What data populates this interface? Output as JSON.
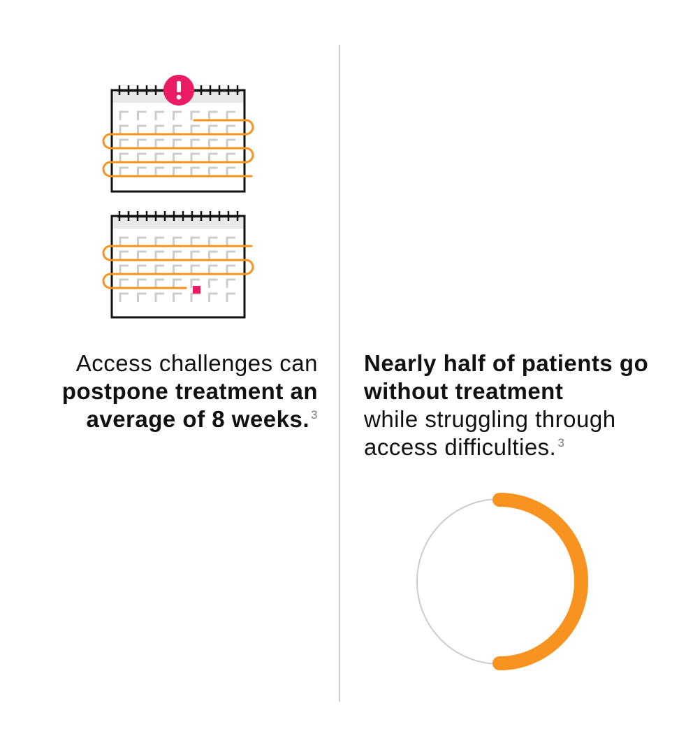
{
  "left": {
    "caption_plain": "Access challenges can",
    "caption_bold": "postpone treatment an average of 8 weeks.",
    "reference": "3"
  },
  "right": {
    "caption_bold": "Nearly half of patients go without treatment",
    "caption_plain": "while struggling through access difficulties.",
    "reference": "3"
  },
  "donut": {
    "fraction": 0.5,
    "track_color": "#cccccc",
    "fill_color": "#f7931e"
  },
  "colors": {
    "accent_orange": "#f7931e",
    "alert_pink": "#ec1c64",
    "outline": "#111111",
    "grid_gray": "#cccccc"
  },
  "icons": {
    "calendar_top": "calendar-alert-icon",
    "calendar_bottom": "calendar-marked-icon"
  }
}
